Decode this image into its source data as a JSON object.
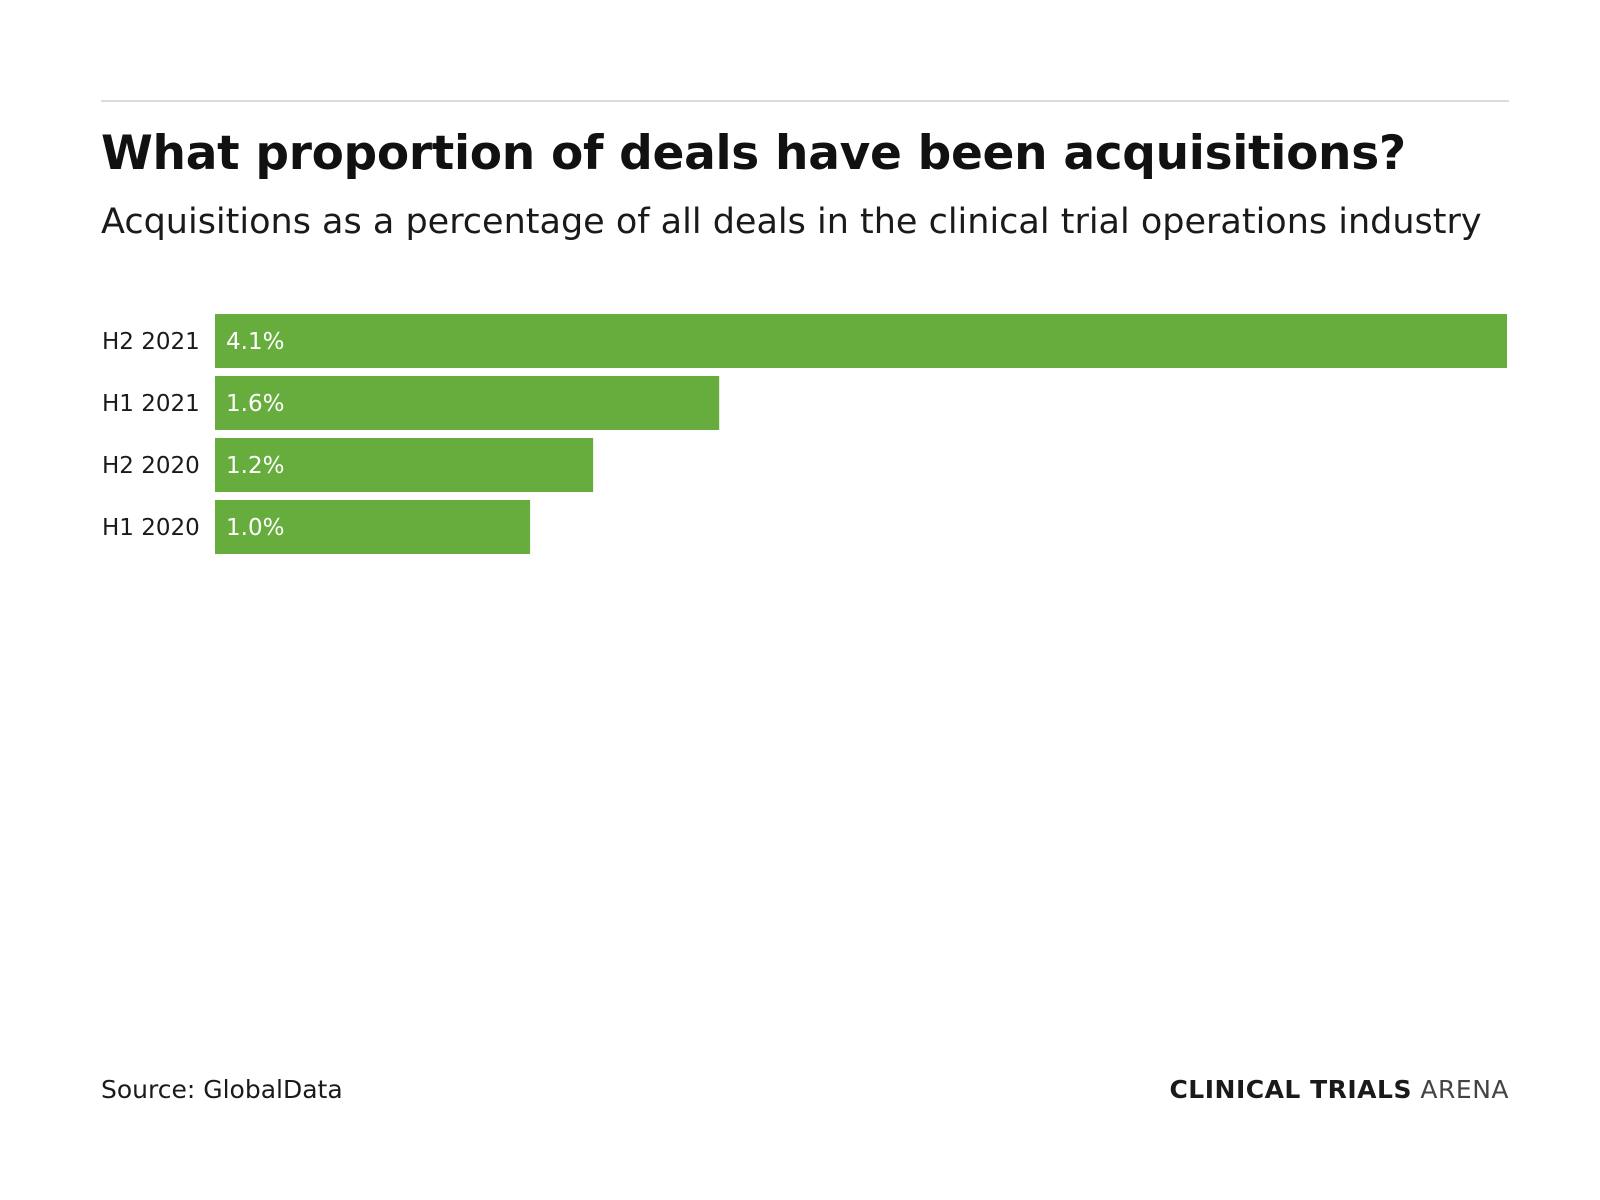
{
  "chart_data": {
    "type": "bar",
    "orientation": "horizontal",
    "title": "What proportion of deals have been acquisitions?",
    "subtitle": "Acquisitions as a percentage of all deals in the clinical trial operations industry",
    "categories": [
      "H2 2021",
      "H1 2021",
      "H2 2020",
      "H1 2020"
    ],
    "values": [
      4.1,
      1.6,
      1.2,
      1.0
    ],
    "labels": [
      "4.1%",
      "1.6%",
      "1.2%",
      "1.0%"
    ],
    "unit": "%",
    "xlim": [
      0,
      4.1
    ],
    "grid": false,
    "legend": "none",
    "bar_color": "#67ad3e",
    "label_color": "#ffffff"
  },
  "footer": {
    "source": "Source: GlobalData",
    "brand_strong": "CLINICAL TRIALS",
    "brand_light": "ARENA"
  }
}
